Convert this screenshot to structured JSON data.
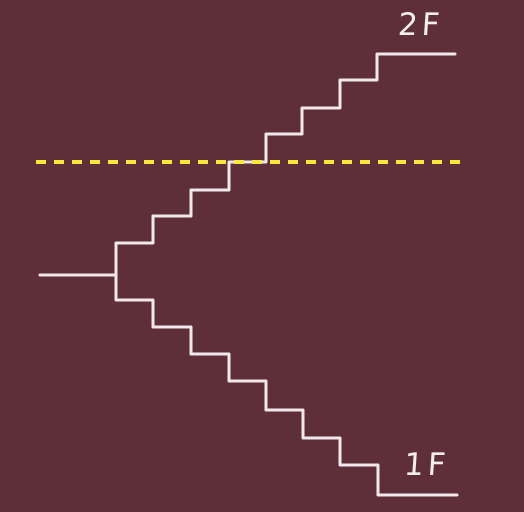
{
  "labels": {
    "upper_floor": "2F",
    "lower_floor": "1F"
  },
  "colors": {
    "background": "#5e2f39",
    "stairs": "#f0e8ea",
    "dashed_line": "#f5ea3a",
    "text": "#f4eeee"
  }
}
